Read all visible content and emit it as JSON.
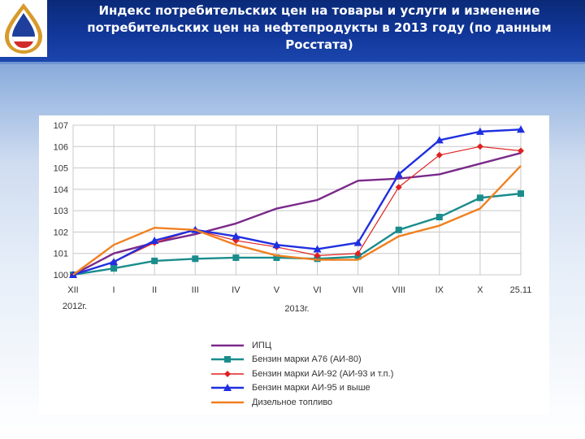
{
  "header": {
    "title_line1": "Индекс потребительских цен на товары и услуги и изменение",
    "title_line2": "потребительских цен на нефтепродукты в 2013 году (по данным",
    "title_line3": "Росстата)",
    "logo_icon": "drop-logo-icon",
    "colors": {
      "header_bg": "#12379a",
      "title_text": "#ffffff"
    }
  },
  "chart_data": {
    "type": "line",
    "title": "",
    "xlabel": "",
    "ylabel": "",
    "categories": [
      "XII",
      "I",
      "II",
      "III",
      "IV",
      "V",
      "VI",
      "VII",
      "VIII",
      "IX",
      "X",
      "25.11"
    ],
    "year_labels": [
      "2012г.",
      "2013г."
    ],
    "ylim": [
      100,
      107
    ],
    "yticks": [
      100,
      101,
      102,
      103,
      104,
      105,
      106,
      107
    ],
    "grid": true,
    "legend_position": "bottom",
    "series": [
      {
        "name": "ИПЦ",
        "color": "#7a2a8a",
        "marker": "none",
        "values": [
          100.0,
          101.0,
          101.5,
          101.9,
          102.4,
          103.1,
          103.5,
          104.4,
          104.5,
          104.7,
          105.2,
          105.7
        ]
      },
      {
        "name": "Бензин марки А76 (АИ-80)",
        "color": "#1a8c8c",
        "marker": "square",
        "values": [
          100.0,
          100.3,
          100.65,
          100.75,
          100.8,
          100.8,
          100.75,
          100.85,
          102.1,
          102.7,
          103.6,
          103.8
        ]
      },
      {
        "name": "Бензин марки АИ-92 (АИ-93 и т.п.)",
        "color": "#e02020",
        "marker": "diamond",
        "values": [
          100.0,
          100.6,
          101.5,
          102.1,
          101.6,
          101.3,
          100.9,
          101.0,
          104.1,
          105.6,
          106.0,
          105.8
        ]
      },
      {
        "name": "Бензин марки АИ-95 и выше",
        "color": "#1f2fe0",
        "marker": "triangle",
        "values": [
          100.0,
          100.6,
          101.6,
          102.1,
          101.8,
          101.4,
          101.2,
          101.5,
          104.7,
          106.3,
          106.7,
          106.8
        ]
      },
      {
        "name": "Дизельное топливо",
        "color": "#f08020",
        "marker": "none",
        "values": [
          100.0,
          101.4,
          102.2,
          102.1,
          101.4,
          100.9,
          100.7,
          100.7,
          101.8,
          102.3,
          103.1,
          105.1
        ]
      }
    ]
  }
}
